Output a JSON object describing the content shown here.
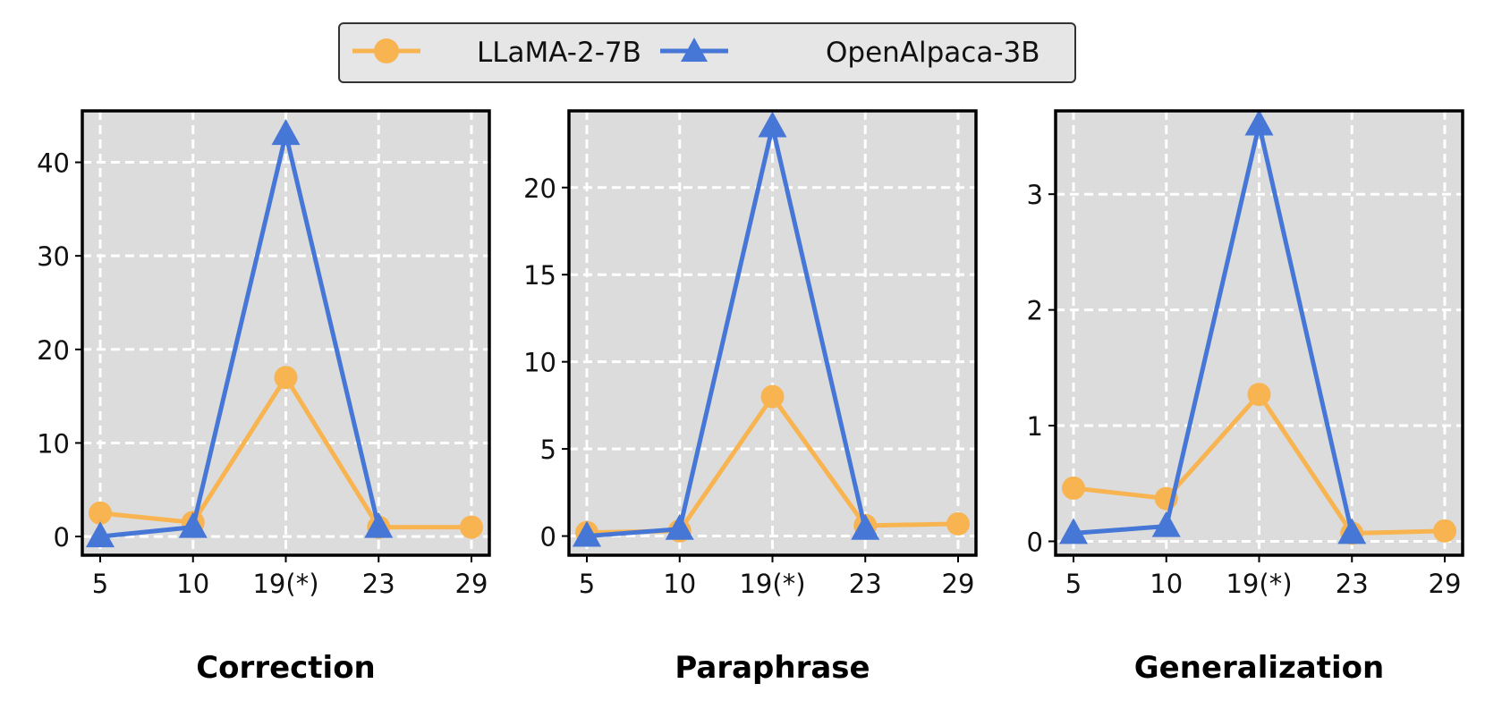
{
  "legend": {
    "items": [
      {
        "label": "LLaMA-2-7B",
        "color": "#F8B451",
        "marker": "circle"
      },
      {
        "label": "OpenAlpaca-3B",
        "color": "#4677D6",
        "marker": "triangle"
      }
    ]
  },
  "chart_data": [
    {
      "type": "line",
      "title": "Correction",
      "categories": [
        "5",
        "10",
        "19(*)",
        "23",
        "29"
      ],
      "ylim": [
        -2,
        45.5
      ],
      "yticks": [
        0,
        10,
        20,
        30,
        40
      ],
      "grid": true,
      "series": [
        {
          "name": "LLaMA-2-7B",
          "values": [
            2.5,
            1.5,
            17,
            1.0,
            1.0
          ]
        },
        {
          "name": "OpenAlpaca-3B",
          "values": [
            0.0,
            1.0,
            43,
            1.0,
            null
          ]
        }
      ]
    },
    {
      "type": "line",
      "title": "Paraphrase",
      "categories": [
        "5",
        "10",
        "19(*)",
        "23",
        "29"
      ],
      "ylim": [
        -1.1,
        24.4
      ],
      "yticks": [
        0,
        5,
        10,
        15,
        20
      ],
      "grid": true,
      "series": [
        {
          "name": "LLaMA-2-7B",
          "values": [
            0.2,
            0.3,
            8.0,
            0.6,
            0.7
          ]
        },
        {
          "name": "OpenAlpaca-3B",
          "values": [
            0.0,
            0.4,
            23.5,
            0.4,
            null
          ]
        }
      ]
    },
    {
      "type": "line",
      "title": "Generalization",
      "categories": [
        "5",
        "10",
        "19(*)",
        "23",
        "29"
      ],
      "ylim": [
        -0.12,
        3.72
      ],
      "yticks": [
        0,
        1,
        2,
        3
      ],
      "grid": true,
      "series": [
        {
          "name": "LLaMA-2-7B",
          "values": [
            0.46,
            0.37,
            1.27,
            0.07,
            0.09
          ]
        },
        {
          "name": "OpenAlpaca-3B",
          "values": [
            0.07,
            0.13,
            3.6,
            0.07,
            null
          ]
        }
      ]
    }
  ]
}
